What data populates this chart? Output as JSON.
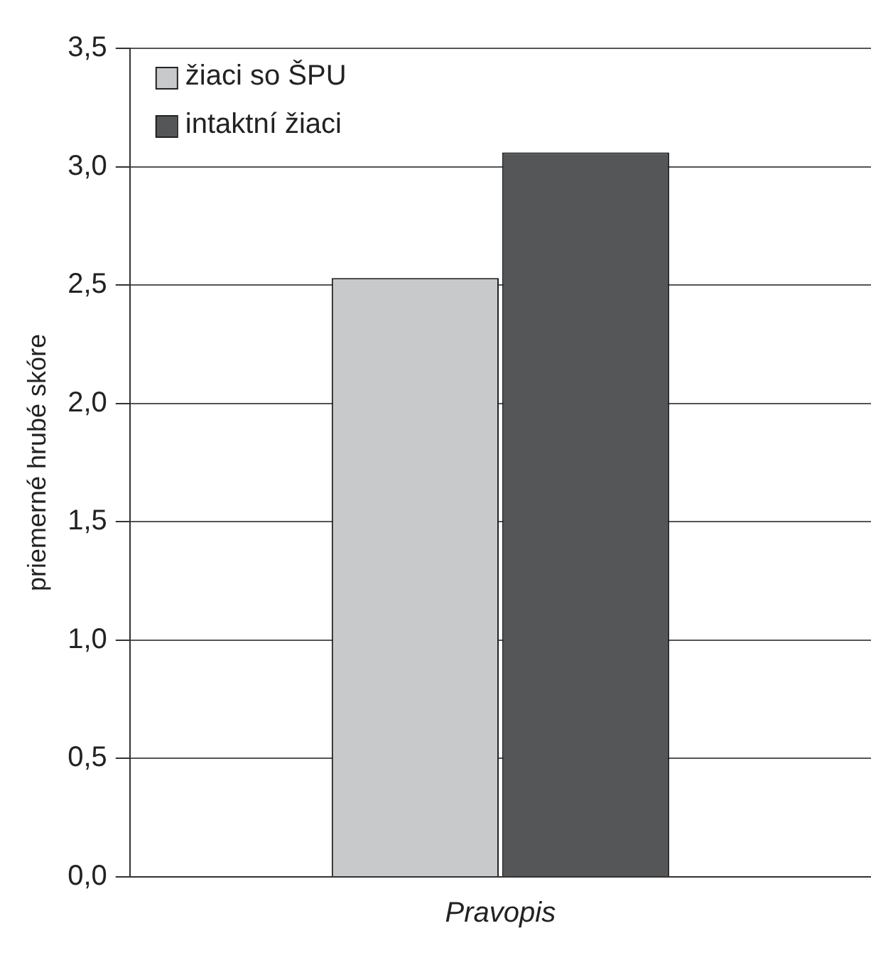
{
  "chart_data": {
    "type": "bar",
    "ylabel": "priemerné hrubé skóre",
    "categories": [
      "Pravopis"
    ],
    "series": [
      {
        "name": "žiaci so ŠPU",
        "color": "#c8c9cb",
        "values": [
          2.53
        ]
      },
      {
        "name": "intaktní žiaci",
        "color": "#555658",
        "values": [
          3.06
        ]
      }
    ],
    "ylim": [
      0,
      3.5
    ],
    "yticks": [
      {
        "value": 0,
        "label": "0,0"
      },
      {
        "value": 0.5,
        "label": "0,5"
      },
      {
        "value": 1,
        "label": "1,0"
      },
      {
        "value": 1.5,
        "label": "1,5"
      },
      {
        "value": 2,
        "label": "2,0"
      },
      {
        "value": 2.5,
        "label": "2,5"
      },
      {
        "value": 3,
        "label": "3,0"
      },
      {
        "value": 3.5,
        "label": "3,5"
      }
    ],
    "grid": "y",
    "legend": "top left"
  }
}
